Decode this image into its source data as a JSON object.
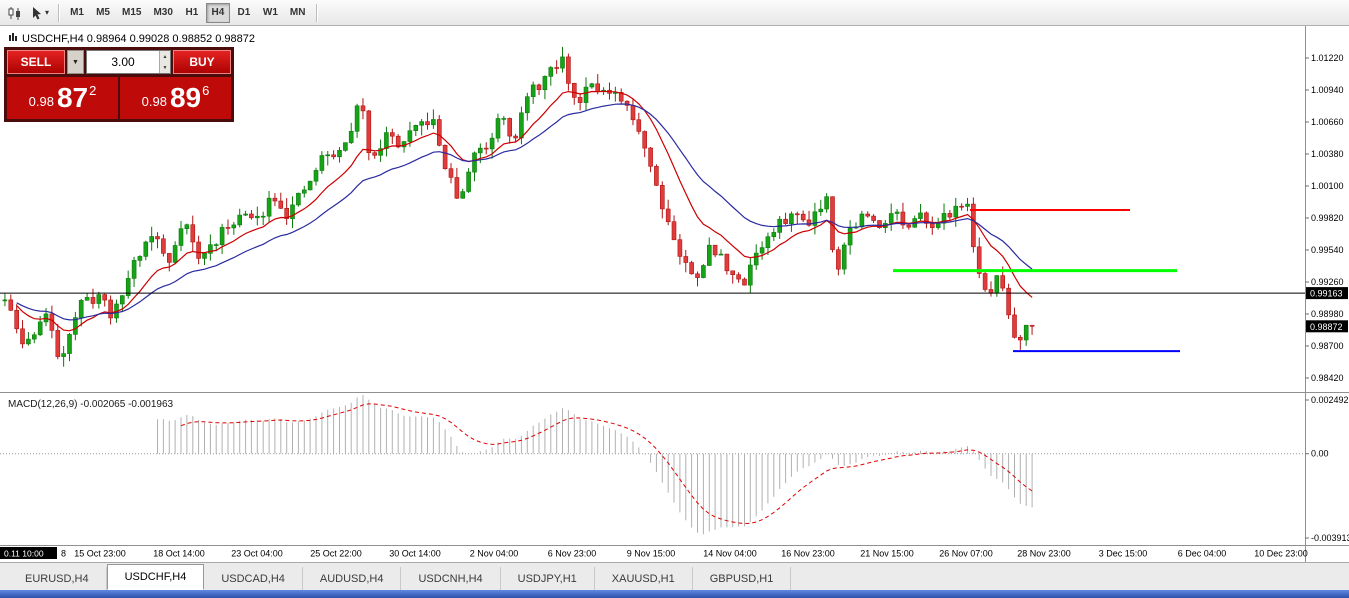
{
  "toolbar": {
    "timeframes": [
      "M1",
      "M5",
      "M15",
      "M30",
      "H1",
      "H4",
      "D1",
      "W1",
      "MN"
    ],
    "active_timeframe": "H4"
  },
  "trade_panel": {
    "sell_label": "SELL",
    "buy_label": "BUY",
    "volume": "3.00",
    "sell_price": {
      "prefix": "0.98",
      "big": "87",
      "sup": "2"
    },
    "buy_price": {
      "prefix": "0.98",
      "big": "89",
      "sup": "6"
    }
  },
  "chart": {
    "info_label": "USDCHF,H4  0.98964 0.99028 0.98852 0.98872",
    "price_axis_labels": [
      "1.01220",
      "1.00940",
      "1.00660",
      "1.00380",
      "1.00100",
      "0.99820",
      "0.99540",
      "0.99260",
      "0.98980",
      "0.98700",
      "0.98420"
    ],
    "bid_price_label": "0.99163",
    "last_price_label": "0.98872"
  },
  "macd_panel": {
    "label": "MACD(12,26,9) -0.002065 -0.001963",
    "axis_labels": [
      "0.002492",
      "0.00",
      "-0.003913"
    ]
  },
  "time_axis": {
    "crosshair_label": "0.11 10:00",
    "partial_label": "8",
    "labels": [
      "15 Oct 23:00",
      "18 Oct 14:00",
      "23 Oct 04:00",
      "25 Oct 22:00",
      "30 Oct 14:00",
      "2 Nov 04:00",
      "6 Nov 23:00",
      "9 Nov 15:00",
      "14 Nov 04:00",
      "16 Nov 23:00",
      "21 Nov 15:00",
      "26 Nov 07:00",
      "28 Nov 23:00",
      "3 Dec 15:00",
      "6 Dec 04:00",
      "10 Dec 23:00"
    ]
  },
  "tabs": {
    "items": [
      "EURUSD,H4",
      "USDCHF,H4",
      "USDCAD,H4",
      "AUDUSD,H4",
      "USDCNH,H4",
      "USDJPY,H1",
      "XAUUSD,H1",
      "GBPUSD,H1"
    ],
    "active": "USDCHF,H4"
  },
  "chart_data": {
    "type": "candlestick",
    "symbol": "USDCHF",
    "timeframe": "H4",
    "ohlc": {
      "open": 0.98964,
      "high": 0.99028,
      "low": 0.98852,
      "close": 0.98872
    },
    "y_axis": {
      "min": 0.9842,
      "max": 1.0122,
      "step": 0.0028
    },
    "num_candles": 176,
    "price_path_anchors": [
      [
        0.0,
        0.991
      ],
      [
        0.019,
        0.9868
      ],
      [
        0.039,
        0.99
      ],
      [
        0.053,
        0.9858
      ],
      [
        0.072,
        0.9905
      ],
      [
        0.092,
        0.9915
      ],
      [
        0.106,
        0.9895
      ],
      [
        0.126,
        0.9945
      ],
      [
        0.145,
        0.997
      ],
      [
        0.159,
        0.994
      ],
      [
        0.174,
        0.9985
      ],
      [
        0.188,
        0.9945
      ],
      [
        0.208,
        0.9965
      ],
      [
        0.227,
        0.9985
      ],
      [
        0.246,
        0.998
      ],
      [
        0.261,
        1.0005
      ],
      [
        0.275,
        0.9985
      ],
      [
        0.295,
        1.001
      ],
      [
        0.309,
        1.0035
      ],
      [
        0.329,
        1.004
      ],
      [
        0.346,
        1.0085
      ],
      [
        0.356,
        1.0035
      ],
      [
        0.372,
        1.0055
      ],
      [
        0.386,
        1.0045
      ],
      [
        0.401,
        1.006
      ],
      [
        0.415,
        1.007
      ],
      [
        0.433,
        1.0015
      ],
      [
        0.444,
        0.9995
      ],
      [
        0.456,
        1.004
      ],
      [
        0.471,
        1.0045
      ],
      [
        0.483,
        1.008
      ],
      [
        0.495,
        1.005
      ],
      [
        0.51,
        1.009
      ],
      [
        0.527,
        1.0105
      ],
      [
        0.543,
        1.012
      ],
      [
        0.556,
        1.008
      ],
      [
        0.57,
        1.0105
      ],
      [
        0.585,
        1.009
      ],
      [
        0.599,
        1.0085
      ],
      [
        0.618,
        1.006
      ],
      [
        0.638,
        1.0
      ],
      [
        0.657,
        0.995
      ],
      [
        0.671,
        0.9928
      ],
      [
        0.686,
        0.9955
      ],
      [
        0.7,
        0.9945
      ],
      [
        0.717,
        0.992
      ],
      [
        0.729,
        0.995
      ],
      [
        0.744,
        0.9965
      ],
      [
        0.763,
        0.9985
      ],
      [
        0.782,
        0.998
      ],
      [
        0.8,
        1.0
      ],
      [
        0.809,
        0.9935
      ],
      [
        0.821,
        0.997
      ],
      [
        0.836,
        0.9985
      ],
      [
        0.85,
        0.9975
      ],
      [
        0.865,
        0.999
      ],
      [
        0.879,
        0.997
      ],
      [
        0.894,
        0.9985
      ],
      [
        0.908,
        0.9975
      ],
      [
        0.923,
        0.999
      ],
      [
        0.935,
        1.0
      ],
      [
        0.947,
        0.994
      ],
      [
        0.957,
        0.9905
      ],
      [
        0.966,
        0.9935
      ],
      [
        0.978,
        0.9895
      ],
      [
        0.986,
        0.9868
      ],
      [
        0.993,
        0.9893
      ],
      [
        1.0,
        0.98872
      ]
    ],
    "moving_averages": [
      {
        "color": "#cc0000",
        "period": 12
      },
      {
        "color": "#2a2aa0",
        "period": 26
      }
    ],
    "horizontal_lines": [
      {
        "color": "#000000",
        "price": 0.99163,
        "from": 0.0,
        "to": 1.0,
        "width": 1
      },
      {
        "color": "#ff0000",
        "price": 0.9989,
        "from": 0.743,
        "to": 0.866,
        "width": 2
      },
      {
        "color": "#00ff00",
        "price": 0.9936,
        "from": 0.684,
        "to": 0.902,
        "width": 3
      },
      {
        "color": "#0000ff",
        "price": 0.98655,
        "from": 0.776,
        "to": 0.904,
        "width": 2
      }
    ],
    "colors": {
      "up": "#17a317",
      "up_border": "#0b7a0b",
      "down": "#e03c3c",
      "down_border": "#b01212",
      "macd_hist": "#b0b0b0",
      "macd_signal": "#e00000"
    },
    "macd": {
      "fast": 12,
      "slow": 26,
      "signal": 9,
      "current_macd": -0.002065,
      "current_signal": -0.001963,
      "axis_max": 0.002492,
      "axis_min": -0.003913
    }
  }
}
